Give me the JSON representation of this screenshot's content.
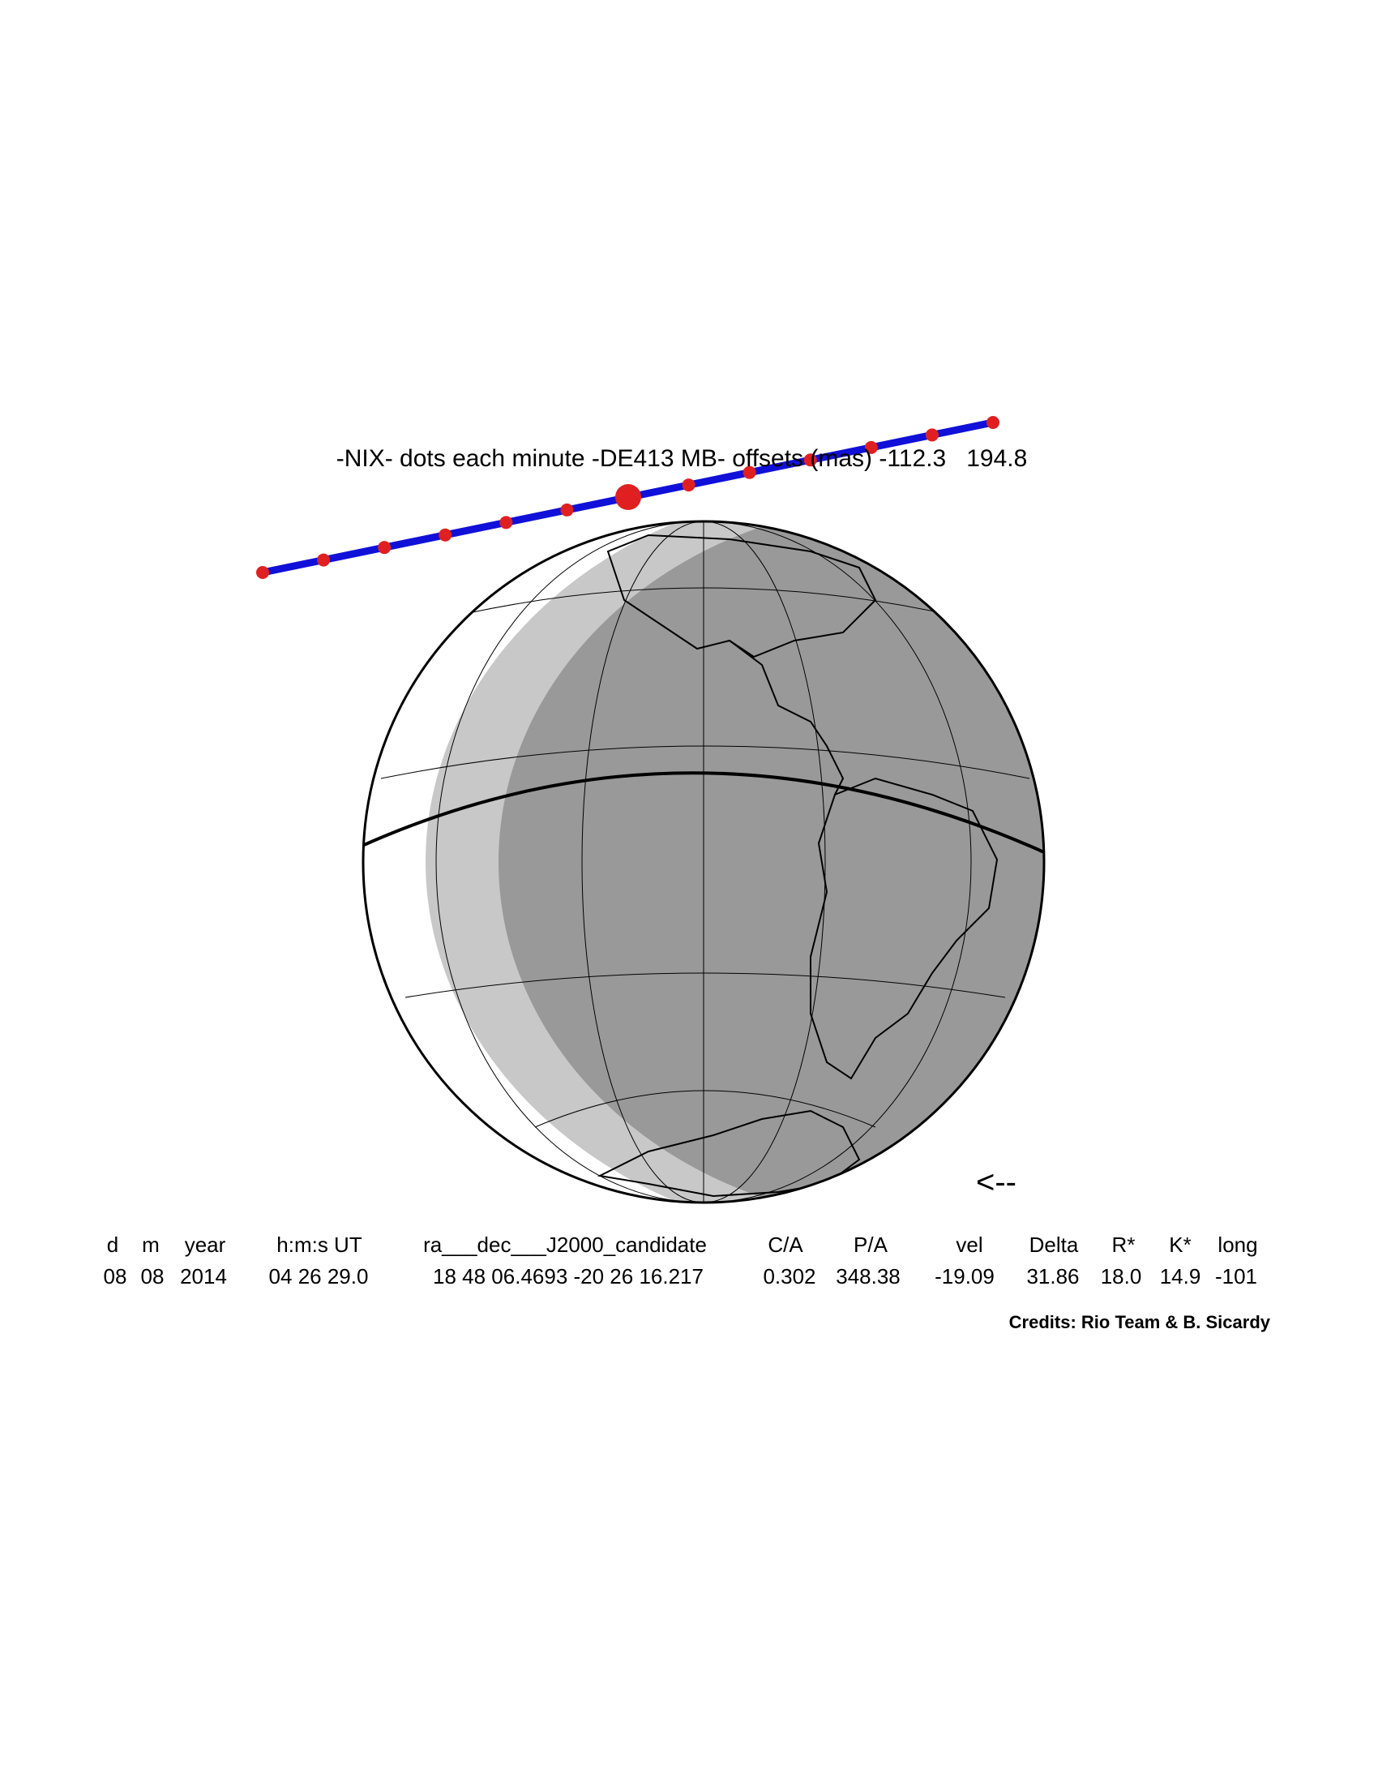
{
  "title": "-NIX- dots each minute -DE413 MB- offsets (mas) -112.3   194.8",
  "table": {
    "header": [
      "d",
      "m",
      "year",
      "h:m:s UT",
      "ra___dec___J2000_candidate",
      "C/A",
      "P/A",
      "vel",
      "Delta",
      "R*",
      "K*",
      "long"
    ],
    "row": [
      "08",
      "08",
      "2014",
      "04 26 29.0",
      "18 48 06.4693 -20 26 16.217",
      "0.302",
      "348.38",
      "-19.09",
      "31.86",
      "18.0",
      "14.9",
      "-101"
    ]
  },
  "direction": "<--",
  "credits": "Credits: Rio Team & B. Sicardy"
}
